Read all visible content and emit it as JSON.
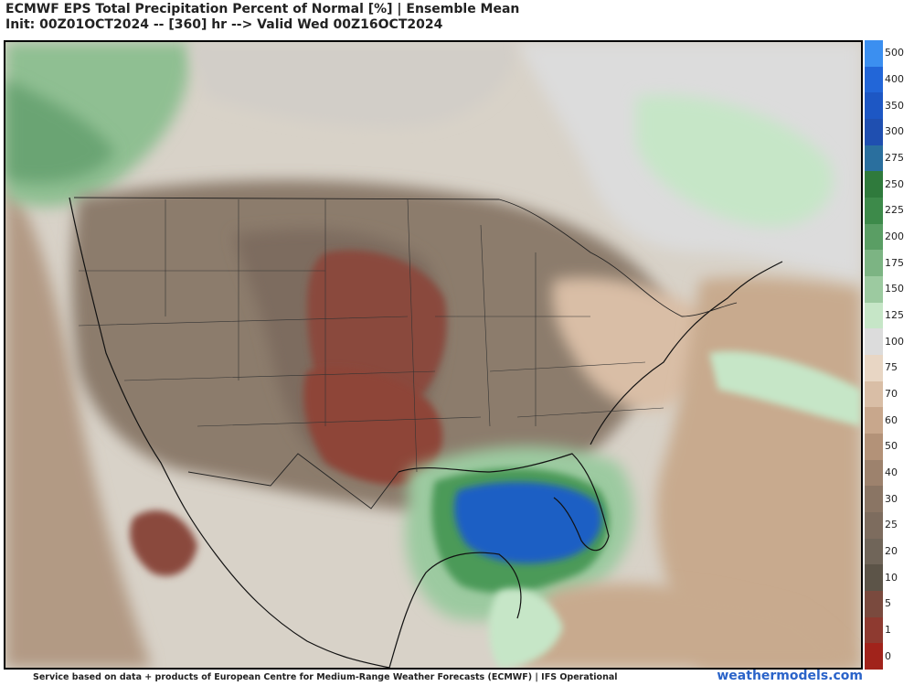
{
  "title": {
    "line1": "ECMWF EPS Total Precipitation Percent of Normal [%] | Ensemble Mean",
    "line2": "Init: 00Z01OCT2024 -- [360] hr --> Valid Wed 00Z16OCT2024"
  },
  "colorbar": {
    "levels": [
      {
        "label": "500",
        "color": "#3b8ff0"
      },
      {
        "label": "400",
        "color": "#2266d8"
      },
      {
        "label": "350",
        "color": "#1d57c4"
      },
      {
        "label": "300",
        "color": "#1f4fb0"
      },
      {
        "label": "275",
        "color": "#2a6f9e"
      },
      {
        "label": "250",
        "color": "#2f7a3c"
      },
      {
        "label": "225",
        "color": "#3d8a4a"
      },
      {
        "label": "200",
        "color": "#5a9e64"
      },
      {
        "label": "175",
        "color": "#7cb483"
      },
      {
        "label": "150",
        "color": "#9ccaa0"
      },
      {
        "label": "125",
        "color": "#c6e6c7"
      },
      {
        "label": "100",
        "color": "#dcdcdc"
      },
      {
        "label": "75",
        "color": "#e8d6c4"
      },
      {
        "label": "70",
        "color": "#d9bea6"
      },
      {
        "label": "60",
        "color": "#c8a78c"
      },
      {
        "label": "50",
        "color": "#b39278"
      },
      {
        "label": "40",
        "color": "#9d826d"
      },
      {
        "label": "30",
        "color": "#8a7564"
      },
      {
        "label": "25",
        "color": "#7d6c5e"
      },
      {
        "label": "20",
        "color": "#706559"
      },
      {
        "label": "10",
        "color": "#5c5448"
      },
      {
        "label": "5",
        "color": "#7a4a3e"
      },
      {
        "label": "1",
        "color": "#8e3a30"
      },
      {
        "label": "0",
        "color": "#a1231b"
      }
    ]
  },
  "footer": {
    "credit": "Service based on data + products of European Centre for Medium-Range Weather Forecasts (ECMWF) | IFS Operational",
    "site": "weathermodels.com"
  }
}
